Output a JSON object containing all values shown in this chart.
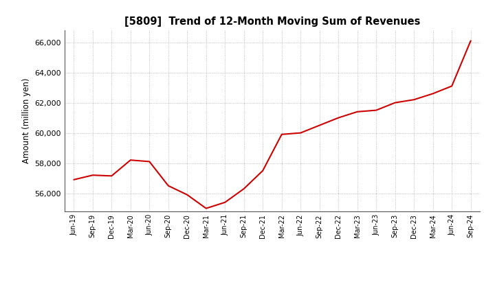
{
  "title": "[5809]  Trend of 12-Month Moving Sum of Revenues",
  "ylabel": "Amount (million yen)",
  "ylim": [
    54800,
    66800
  ],
  "yticks": [
    56000,
    58000,
    60000,
    62000,
    64000,
    66000
  ],
  "line_color": "#cc0000",
  "background_color": "#ffffff",
  "x_labels": [
    "Jun-19",
    "Sep-19",
    "Dec-19",
    "Mar-20",
    "Jun-20",
    "Sep-20",
    "Dec-20",
    "Mar-21",
    "Jun-21",
    "Sep-21",
    "Dec-21",
    "Mar-22",
    "Jun-22",
    "Sep-22",
    "Dec-22",
    "Mar-23",
    "Jun-23",
    "Sep-23",
    "Dec-23",
    "Mar-24",
    "Jun-24",
    "Sep-24"
  ],
  "y_values": [
    56900,
    57200,
    57150,
    58200,
    58100,
    56500,
    55900,
    55000,
    55400,
    56300,
    57500,
    59900,
    60000,
    60500,
    61000,
    61400,
    61500,
    62000,
    62200,
    62600,
    63100,
    66100
  ]
}
